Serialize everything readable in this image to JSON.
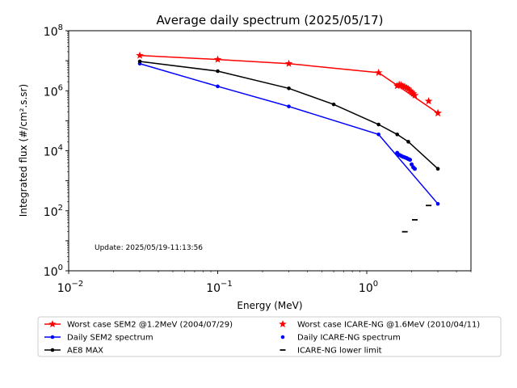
{
  "chart_data": {
    "type": "line",
    "title": "Average daily spectrum (2025/05/17)",
    "xlabel": "Energy (MeV)",
    "ylabel": "Integrated flux (#/cm².s.sr)",
    "x_scale": "log",
    "y_scale": "log",
    "xlim": [
      0.01,
      5.0
    ],
    "ylim": [
      1,
      100000000
    ],
    "x_ticks": [
      {
        "value": 0.01,
        "base": "10",
        "exp": "−2"
      },
      {
        "value": 0.1,
        "base": "10",
        "exp": "−1"
      },
      {
        "value": 1,
        "base": "10",
        "exp": "0"
      }
    ],
    "y_ticks": [
      {
        "value": 1,
        "base": "10",
        "exp": "0"
      },
      {
        "value": 100,
        "base": "10",
        "exp": "2"
      },
      {
        "value": 10000,
        "base": "10",
        "exp": "4"
      },
      {
        "value": 1000000,
        "base": "10",
        "exp": "6"
      },
      {
        "value": 100000000,
        "base": "10",
        "exp": "8"
      }
    ],
    "annotation": "Update: 2025/05/19-11:13:56",
    "grid": false,
    "legend_position": "below plot, two columns",
    "series": [
      {
        "name": "Worst case SEM2 @1.2MeV (2004/07/29)",
        "color": "#ff0000",
        "style": "line-star",
        "x": [
          0.03,
          0.1,
          0.3,
          1.2,
          3.0
        ],
        "y": [
          15000000,
          11000000,
          8000000,
          4000000,
          180000
        ]
      },
      {
        "name": "Daily SEM2 spectrum",
        "color": "#0000ff",
        "style": "line-dot",
        "x": [
          0.03,
          0.1,
          0.3,
          1.2,
          3.0
        ],
        "y": [
          8000000,
          1400000,
          300000,
          35000,
          170
        ]
      },
      {
        "name": "AE8 MAX",
        "color": "#000000",
        "style": "line-dot",
        "x": [
          0.03,
          0.1,
          0.3,
          0.6,
          1.2,
          1.6,
          1.9,
          3.0
        ],
        "y": [
          9500000,
          4500000,
          1200000,
          350000,
          75000,
          35000,
          20000,
          2500
        ]
      },
      {
        "name": "Worst case ICARE-NG @1.6MeV (2010/04/11)",
        "color": "#ff0000",
        "style": "star",
        "x": [
          1.6,
          1.65,
          1.7,
          1.75,
          1.8,
          1.85,
          1.9,
          1.95,
          2.0,
          2.05,
          2.1,
          2.6,
          3.0
        ],
        "y": [
          1450000,
          1600000,
          1550000,
          1400000,
          1350000,
          1250000,
          1150000,
          1000000,
          900000,
          800000,
          700000,
          450000,
          180000
        ]
      },
      {
        "name": "Daily ICARE-NG spectrum",
        "color": "#0000ff",
        "style": "dot",
        "x": [
          1.6,
          1.65,
          1.7,
          1.75,
          1.8,
          1.85,
          1.9,
          1.95,
          2.0,
          2.05,
          2.1
        ],
        "y": [
          8500,
          7300,
          6800,
          6300,
          6000,
          5700,
          5300,
          5000,
          3500,
          2800,
          2500
        ]
      },
      {
        "name": "ICARE-NG lower limit",
        "color": "#000000",
        "style": "dash",
        "x": [
          1.8,
          2.1,
          2.6
        ],
        "y": [
          20,
          50,
          150
        ]
      }
    ]
  }
}
